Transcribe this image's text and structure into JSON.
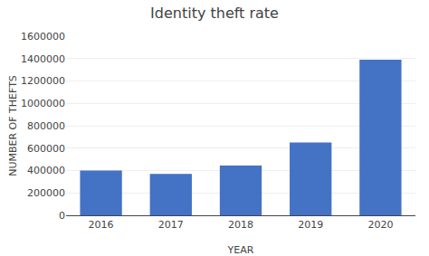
{
  "chart_data": {
    "type": "bar",
    "title": "Identity theft rate",
    "xlabel": "YEAR",
    "ylabel": "NUMBER OF THEFTS",
    "categories": [
      "2016",
      "2017",
      "2018",
      "2019",
      "2020"
    ],
    "values": [
      400000,
      370000,
      445000,
      650000,
      1390000
    ],
    "color": "#4472C4",
    "ylim": [
      0,
      1600000
    ],
    "yticks": [
      0,
      200000,
      400000,
      600000,
      800000,
      1000000,
      1200000,
      1400000,
      1600000
    ],
    "grid": true
  }
}
